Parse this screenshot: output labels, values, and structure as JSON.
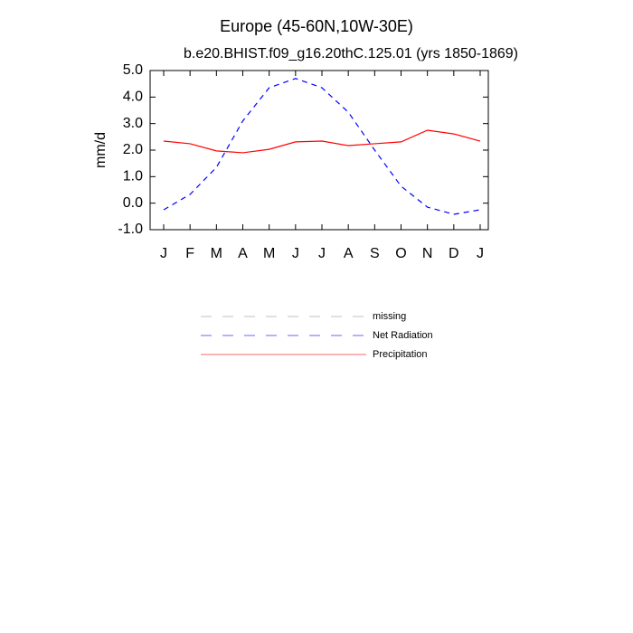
{
  "chart_data": {
    "type": "line",
    "title": "Europe (45-60N,10W-30E)",
    "subtitle": "b.e20.BHIST.f09_g16.20thC.125.01 (yrs 1850-1869)",
    "y_label": "mm/d",
    "categories": [
      "J",
      "F",
      "M",
      "A",
      "M",
      "J",
      "J",
      "A",
      "S",
      "O",
      "N",
      "D",
      "J"
    ],
    "series": [
      {
        "name": "missing",
        "color": "#999999",
        "dash": true,
        "values": [
          null,
          null,
          null,
          null,
          null,
          null,
          null,
          null,
          null,
          null,
          null,
          null,
          null
        ]
      },
      {
        "name": "Net Radiation",
        "color": "#0000ff",
        "dash": true,
        "values": [
          -0.25,
          0.33,
          1.35,
          3.1,
          4.35,
          4.7,
          4.35,
          3.43,
          2.0,
          0.64,
          -0.15,
          -0.42,
          -0.25
        ]
      },
      {
        "name": "Precipitation",
        "color": "#ff0000",
        "dash": false,
        "values": [
          2.34,
          2.24,
          1.97,
          1.9,
          2.03,
          2.31,
          2.34,
          2.17,
          2.24,
          2.31,
          2.75,
          2.61,
          2.34
        ]
      }
    ],
    "ylim": [
      -1,
      5
    ],
    "yticks": [
      {
        "value": 5,
        "label": "5.0"
      },
      {
        "value": 4,
        "label": "4.0"
      },
      {
        "value": 3,
        "label": "3.0"
      },
      {
        "value": 2,
        "label": "2.0"
      },
      {
        "value": 1,
        "label": "1.0"
      },
      {
        "value": 0,
        "label": "0.0"
      },
      {
        "value": -1,
        "label": "-1.0"
      }
    ]
  }
}
